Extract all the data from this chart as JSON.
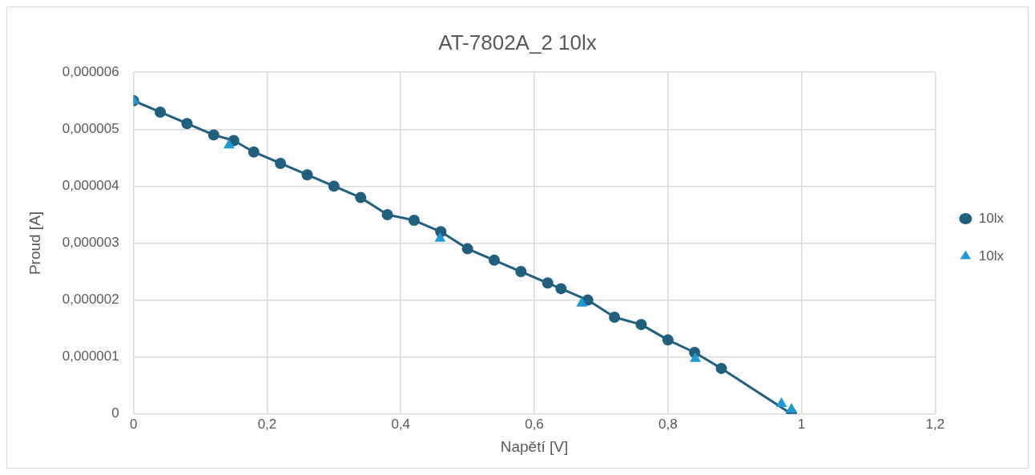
{
  "chart_data": {
    "type": "line",
    "title": "AT-7802A_2 10lx",
    "xlabel": "Napětí [V]",
    "ylabel": "Proud [A]",
    "series": [
      {
        "name": "10lx",
        "color": "#1f5f7f",
        "marker": "circle",
        "x": [
          0,
          0.04,
          0.08,
          0.12,
          0.15,
          0.18,
          0.22,
          0.26,
          0.3,
          0.34,
          0.38,
          0.42,
          0.46,
          0.5,
          0.54,
          0.58,
          0.62,
          0.64,
          0.68,
          0.72,
          0.76,
          0.8,
          0.84,
          0.88,
          0.985
        ],
        "values": [
          5.5e-06,
          5.3e-06,
          5.1e-06,
          4.9e-06,
          4.8e-06,
          4.6e-06,
          4.4e-06,
          4.2e-06,
          4e-06,
          3.8e-06,
          3.5e-06,
          3.4e-06,
          3.2e-06,
          2.9e-06,
          2.7e-06,
          2.5e-06,
          2.3e-06,
          2.2e-06,
          2e-06,
          1.7e-06,
          1.57e-06,
          1.3e-06,
          1.08e-06,
          8e-07,
          0
        ]
      },
      {
        "name": "10lx",
        "color": "#1a9ad6",
        "type": "scatter",
        "marker": "triangle",
        "x": [
          0,
          0.143,
          0.459,
          0.671,
          0.841,
          0.97,
          0.985
        ],
        "values": [
          5.5e-06,
          4.72e-06,
          3.08e-06,
          1.94e-06,
          9.7e-07,
          1.8e-07,
          8e-08
        ]
      }
    ],
    "xlim": [
      0,
      1.2
    ],
    "xticks": [
      0,
      {
        "value": 0.2,
        "label": "0,2"
      },
      {
        "value": 0.4,
        "label": "0,4"
      },
      {
        "value": 0.6,
        "label": "0,6"
      },
      {
        "value": 0.8,
        "label": "0,8"
      },
      1,
      {
        "value": 1.2,
        "label": "1,2"
      }
    ],
    "ylim": [
      0,
      6e-06
    ],
    "yticks": [
      0,
      {
        "value": 1e-06,
        "label": "0,000001"
      },
      {
        "value": 2e-06,
        "label": "0,000002"
      },
      {
        "value": 3e-06,
        "label": "0,000003"
      },
      {
        "value": 4e-06,
        "label": "0,000004"
      },
      {
        "value": 5e-06,
        "label": "0,000005"
      },
      {
        "value": 6e-06,
        "label": "0,000006"
      }
    ],
    "grid": true,
    "legend": "right"
  }
}
